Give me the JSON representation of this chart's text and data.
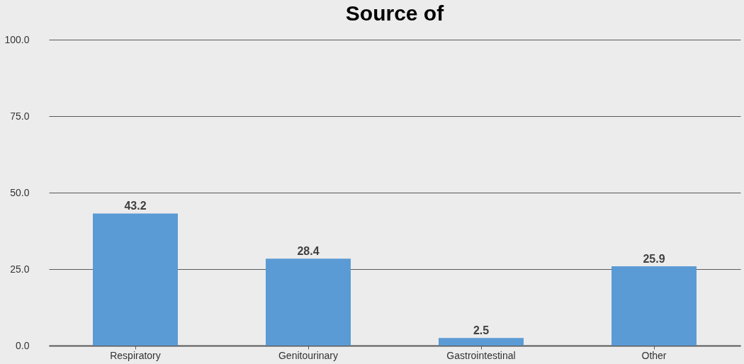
{
  "chart_data": {
    "type": "bar",
    "title": "Source of",
    "categories": [
      "Respiratory",
      "Genitourinary",
      "Gastrointestinal",
      "Other"
    ],
    "values": [
      43.2,
      28.4,
      2.5,
      25.9
    ],
    "color": "#5b9bd5",
    "ylim": [
      0,
      100
    ],
    "yticks": [
      {
        "value": 0,
        "label": "0.0"
      },
      {
        "value": 25,
        "label": "25.0"
      },
      {
        "value": 50,
        "label": "50.0"
      },
      {
        "value": 75,
        "label": "75.0"
      },
      {
        "value": 100,
        "label": "100.0"
      }
    ],
    "grid": "y",
    "data_labels": true
  }
}
